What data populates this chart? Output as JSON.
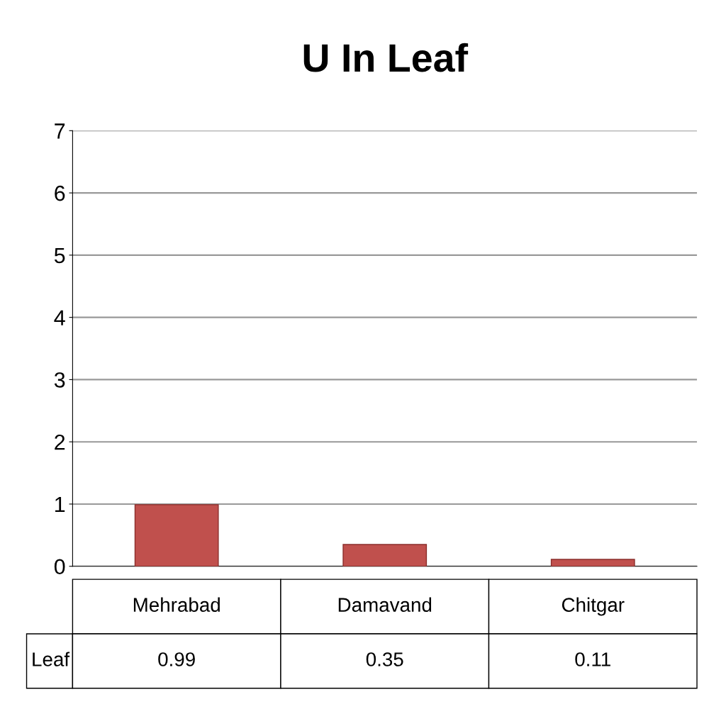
{
  "chart_data": {
    "type": "bar",
    "title": "U In Leaf",
    "categories": [
      "Mehrabad",
      "Damavand",
      "Chitgar"
    ],
    "series": [
      {
        "name": "Leaf",
        "color": "#c0504d",
        "values": [
          0.99,
          0.35,
          0.11
        ]
      }
    ],
    "ylim": [
      0,
      7
    ],
    "yticks": [
      0,
      1,
      2,
      3,
      4,
      5,
      6,
      7
    ],
    "grid": "y",
    "data_labels": true,
    "legend": false
  }
}
